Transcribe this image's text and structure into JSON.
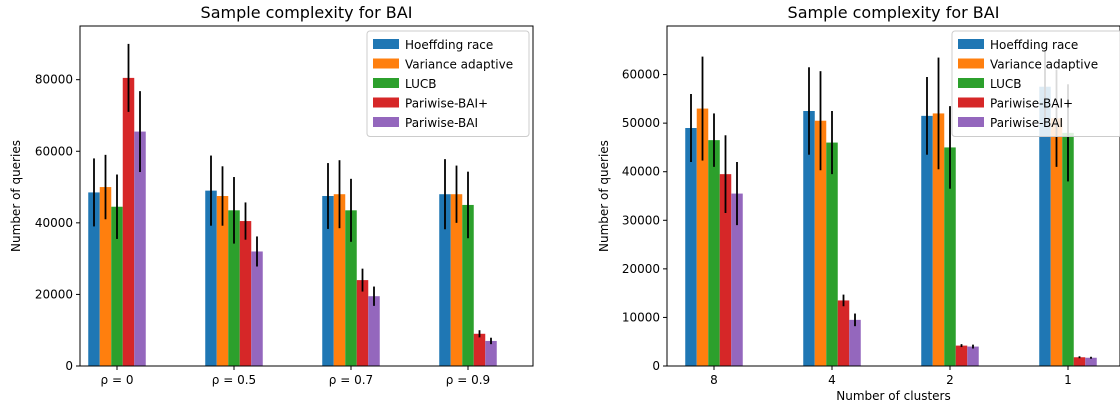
{
  "chart_data": [
    {
      "type": "bar",
      "title": "Sample complexity for BAI",
      "xlabel": "",
      "ylabel": "Number of queries",
      "ylim": [
        0,
        95000
      ],
      "yticks": [
        0,
        20000,
        40000,
        60000,
        80000
      ],
      "categories": [
        "ρ = 0",
        "ρ = 0.5",
        "ρ = 0.7",
        "ρ = 0.9"
      ],
      "legend_position": "top-right",
      "series": [
        {
          "name": "Hoeffding race",
          "color": "#1f77b4",
          "values": [
            48500,
            49000,
            47500,
            48000
          ],
          "err": [
            9500,
            9800,
            9200,
            9800
          ]
        },
        {
          "name": "Variance adaptive",
          "color": "#ff7f0e",
          "values": [
            50000,
            47500,
            48000,
            48000
          ],
          "err": [
            9000,
            8300,
            9500,
            8000
          ]
        },
        {
          "name": "LUCB",
          "color": "#2ca02c",
          "values": [
            44500,
            43500,
            43500,
            45000
          ],
          "err": [
            9000,
            9300,
            8800,
            9300
          ]
        },
        {
          "name": "Pariwise-BAI+",
          "color": "#d62728",
          "values": [
            80500,
            40500,
            24000,
            9000
          ],
          "err": [
            9500,
            5200,
            3200,
            1000
          ]
        },
        {
          "name": "Pariwise-BAI",
          "color": "#9467bd",
          "values": [
            65500,
            32000,
            19500,
            7000
          ],
          "err": [
            11300,
            4200,
            2700,
            900
          ]
        }
      ]
    },
    {
      "type": "bar",
      "title": "Sample complexity for BAI",
      "xlabel": "Number of clusters",
      "ylabel": "Number of queries",
      "ylim": [
        0,
        70000
      ],
      "yticks": [
        0,
        10000,
        20000,
        30000,
        40000,
        50000,
        60000
      ],
      "categories": [
        "8",
        "4",
        "2",
        "1"
      ],
      "legend_position": "top-right",
      "series": [
        {
          "name": "Hoeffding race",
          "color": "#1f77b4",
          "values": [
            49000,
            52500,
            51500,
            57500
          ],
          "err": [
            7000,
            9000,
            8000,
            7500
          ]
        },
        {
          "name": "Variance adaptive",
          "color": "#ff7f0e",
          "values": [
            53000,
            50500,
            52000,
            51000
          ],
          "err": [
            10700,
            10200,
            11500,
            10000
          ]
        },
        {
          "name": "LUCB",
          "color": "#2ca02c",
          "values": [
            46500,
            46000,
            45000,
            48000
          ],
          "err": [
            5500,
            6500,
            8500,
            10000
          ]
        },
        {
          "name": "Pariwise-BAI+",
          "color": "#d62728",
          "values": [
            39500,
            13500,
            4200,
            1800
          ],
          "err": [
            8000,
            1200,
            300,
            200
          ]
        },
        {
          "name": "Pariwise-BAI",
          "color": "#9467bd",
          "values": [
            35500,
            9500,
            4000,
            1700
          ],
          "err": [
            6500,
            1300,
            400,
            200
          ]
        }
      ]
    }
  ]
}
